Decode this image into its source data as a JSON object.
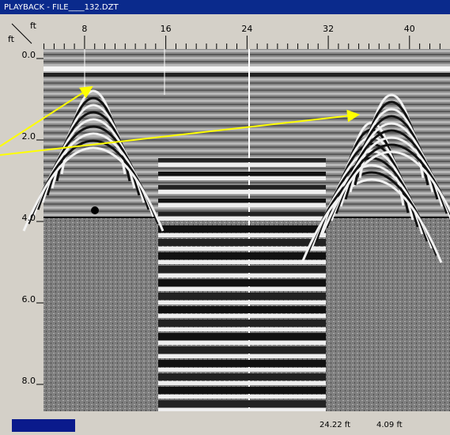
{
  "window": {
    "title": "PLAYBACK - FILE____132.DZT"
  },
  "ruler": {
    "x_unit": "ft",
    "y_unit": "ft",
    "x_ticks": [
      "8",
      "16",
      "24",
      "32",
      "40"
    ],
    "y_ticks": [
      "0.0",
      "2.0",
      "4.0",
      "6.0",
      "8.0"
    ]
  },
  "status": {
    "distance": "24.22 ft",
    "depth": "4.09 ft"
  }
}
